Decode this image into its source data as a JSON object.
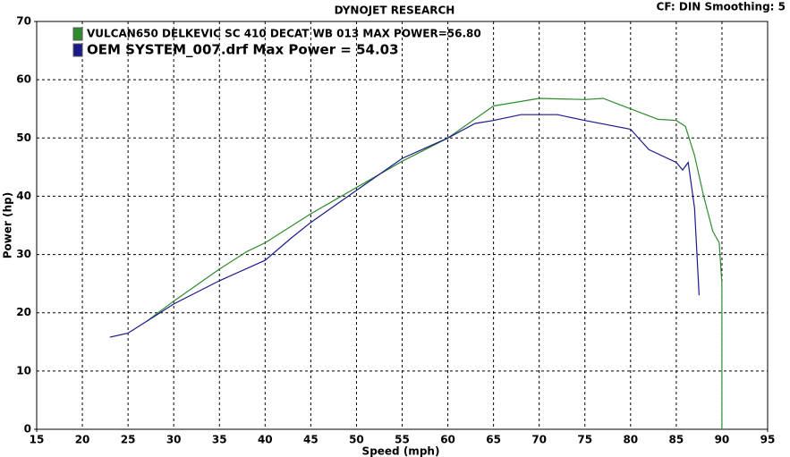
{
  "chart_data": {
    "type": "line",
    "title": "DYNOJET RESEARCH",
    "subtitle": "CF: DIN  Smoothing: 5",
    "x_label": "Speed (mph)",
    "y_label": "Power (hp)",
    "xlim": [
      15,
      95
    ],
    "ylim": [
      0,
      70
    ],
    "xticks": [
      15,
      20,
      25,
      30,
      35,
      40,
      45,
      50,
      55,
      60,
      65,
      70,
      75,
      80,
      85,
      90,
      95
    ],
    "yticks": [
      0,
      10,
      20,
      30,
      40,
      50,
      60,
      70
    ],
    "grid": true,
    "series": [
      {
        "name": "VULCAN650 DELKEVIC SC 410 DECAT WB 013 MAX POWER=56.80",
        "color": "#2e8b2e",
        "x": [
          27,
          30,
          35,
          38,
          40,
          45,
          50,
          55,
          60,
          65,
          70,
          75,
          77,
          80,
          83,
          85,
          86,
          87,
          88,
          89,
          89.7,
          90,
          90,
          90
        ],
        "values": [
          18.5,
          22,
          27.5,
          30.5,
          32,
          37,
          41.5,
          46,
          50,
          55.5,
          56.8,
          56.6,
          56.8,
          55,
          53.2,
          53,
          52,
          47,
          40,
          34,
          32,
          25,
          12,
          0
        ]
      },
      {
        "name": "OEM SYSTEM_007.drf Max Power = 54.03",
        "color": "#1a1a8c",
        "x": [
          23,
          25,
          26,
          28,
          30,
          35,
          40,
          43,
          45,
          50,
          55,
          60,
          63,
          65,
          68,
          72,
          75,
          80,
          82,
          85,
          85.7,
          86.3,
          87,
          87.5
        ],
        "values": [
          15.8,
          16.5,
          17.5,
          19.5,
          21.5,
          25.5,
          29,
          33,
          35.5,
          41,
          46.5,
          50,
          52.5,
          53,
          54,
          54,
          53,
          51.5,
          48,
          45.8,
          44.5,
          45.8,
          38,
          23
        ]
      }
    ]
  }
}
